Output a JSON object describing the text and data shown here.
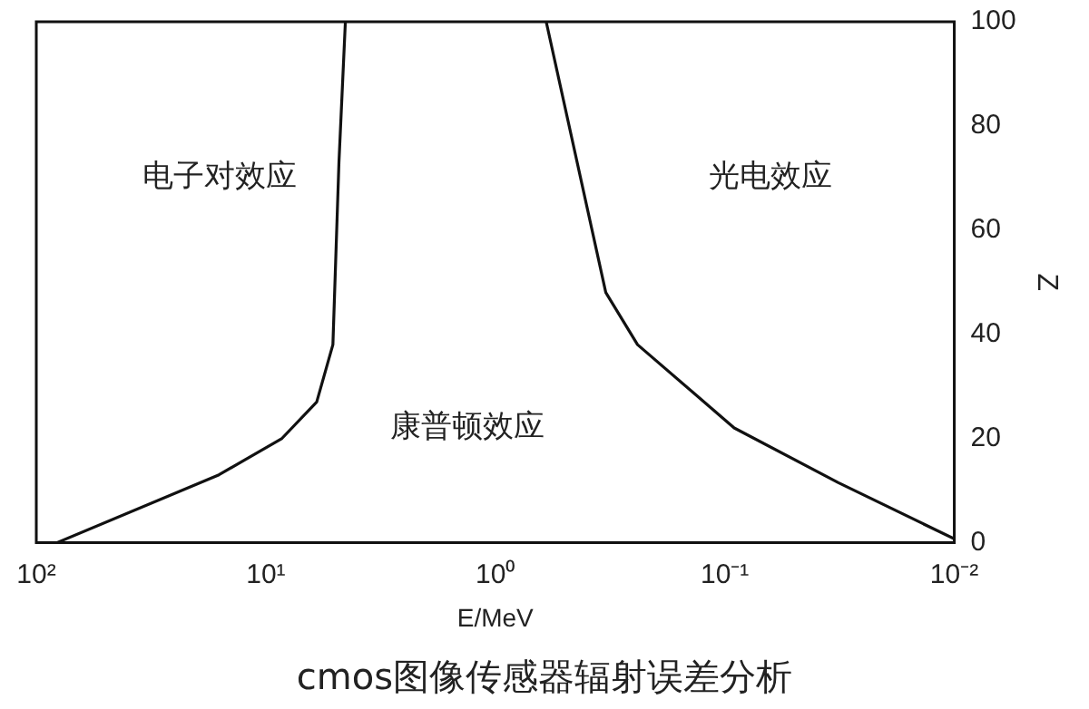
{
  "chart_data": {
    "type": "line",
    "xlabel": "E/MeV",
    "ylabel": "Z",
    "log": "x",
    "xlim": [
      100,
      0.01
    ],
    "ylim": [
      0,
      100
    ],
    "xticks": [
      {
        "value": 100,
        "label": "10²"
      },
      {
        "value": 10,
        "label": "10¹"
      },
      {
        "value": 1,
        "label": "10⁰"
      },
      {
        "value": 0.1,
        "label": "10⁻¹"
      },
      {
        "value": 0.01,
        "label": "10⁻²"
      }
    ],
    "yticks": [
      0,
      20,
      40,
      60,
      80,
      100
    ],
    "grid": false,
    "legend": false,
    "marker": "none",
    "line_style": "solid",
    "series": [
      {
        "color": "#111111",
        "x": [
          81,
          16,
          8.5,
          6,
          5.1,
          4.8,
          4.5
        ],
        "values": [
          0,
          13,
          20,
          27,
          38,
          73,
          100
        ]
      },
      {
        "color": "#111111",
        "x": [
          0.6,
          0.42,
          0.33,
          0.24,
          0.091,
          0.032,
          0.01
        ],
        "values": [
          100,
          69,
          48,
          38,
          22,
          11.5,
          0.7
        ]
      }
    ],
    "annotations": [
      "电子对效应",
      "光电效应",
      "康普顿效应",
      "cmos图像传感器辐射误差分析"
    ]
  }
}
